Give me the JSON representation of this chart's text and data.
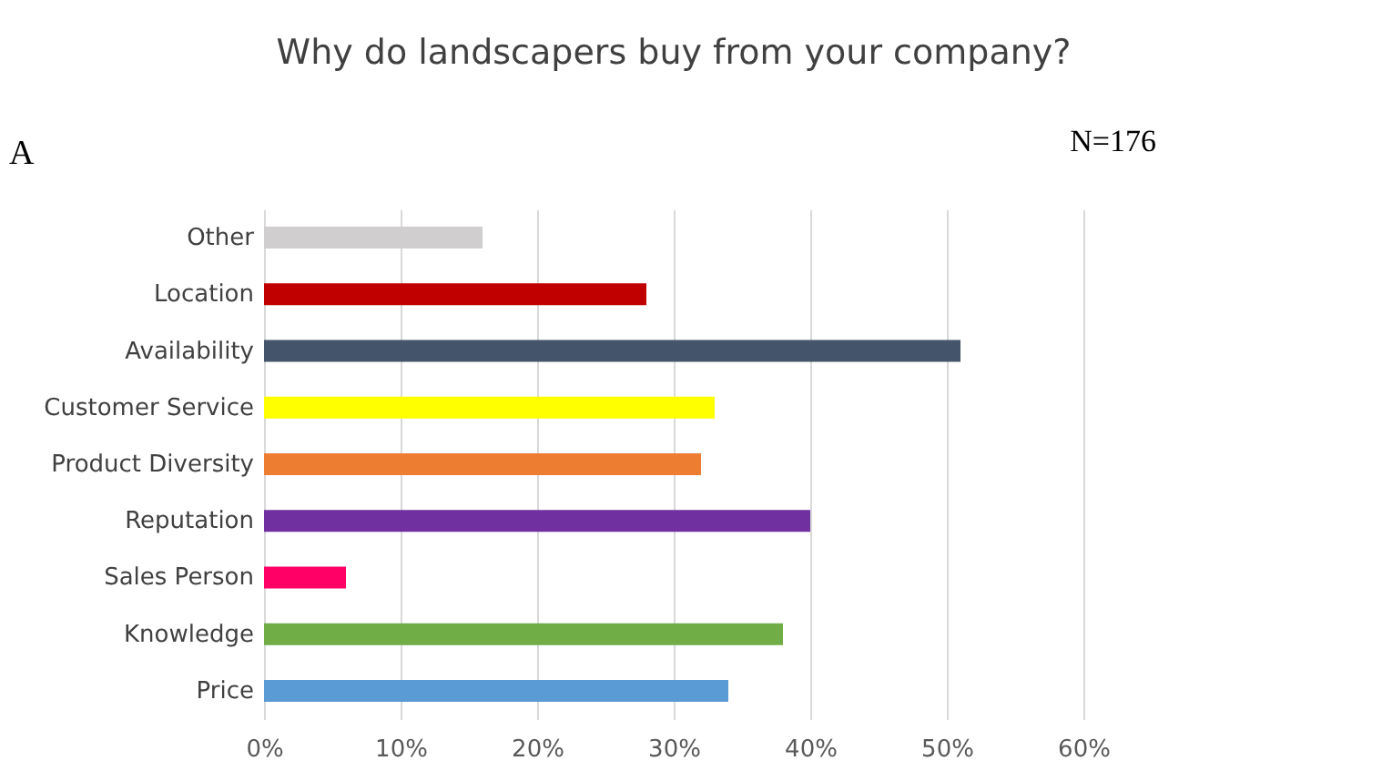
{
  "chart_data": {
    "type": "bar",
    "orientation": "horizontal",
    "title": "Why do landscapers buy from your company?",
    "annotations": [
      "A",
      "N=176"
    ],
    "categories": [
      "Other",
      "Location",
      "Availability",
      "Customer Service",
      "Product Diversity",
      "Reputation",
      "Sales Person",
      "Knowledge",
      "Price"
    ],
    "values": [
      16,
      28,
      51,
      33,
      32,
      40,
      6,
      38,
      34
    ],
    "colors": [
      "#d0cece",
      "#c00000",
      "#44546a",
      "#ffff00",
      "#ed7d31",
      "#7030a0",
      "#ff0066",
      "#70ad47",
      "#5b9bd5"
    ],
    "xlim": [
      0,
      60
    ],
    "xticks": [
      {
        "value": 0,
        "label": "0%"
      },
      {
        "value": 10,
        "label": "10%"
      },
      {
        "value": 20,
        "label": "20%"
      },
      {
        "value": 30,
        "label": "30%"
      },
      {
        "value": 40,
        "label": "40%"
      },
      {
        "value": 50,
        "label": "50%"
      },
      {
        "value": 60,
        "label": "60%"
      }
    ],
    "grid": "x",
    "legend": false
  }
}
